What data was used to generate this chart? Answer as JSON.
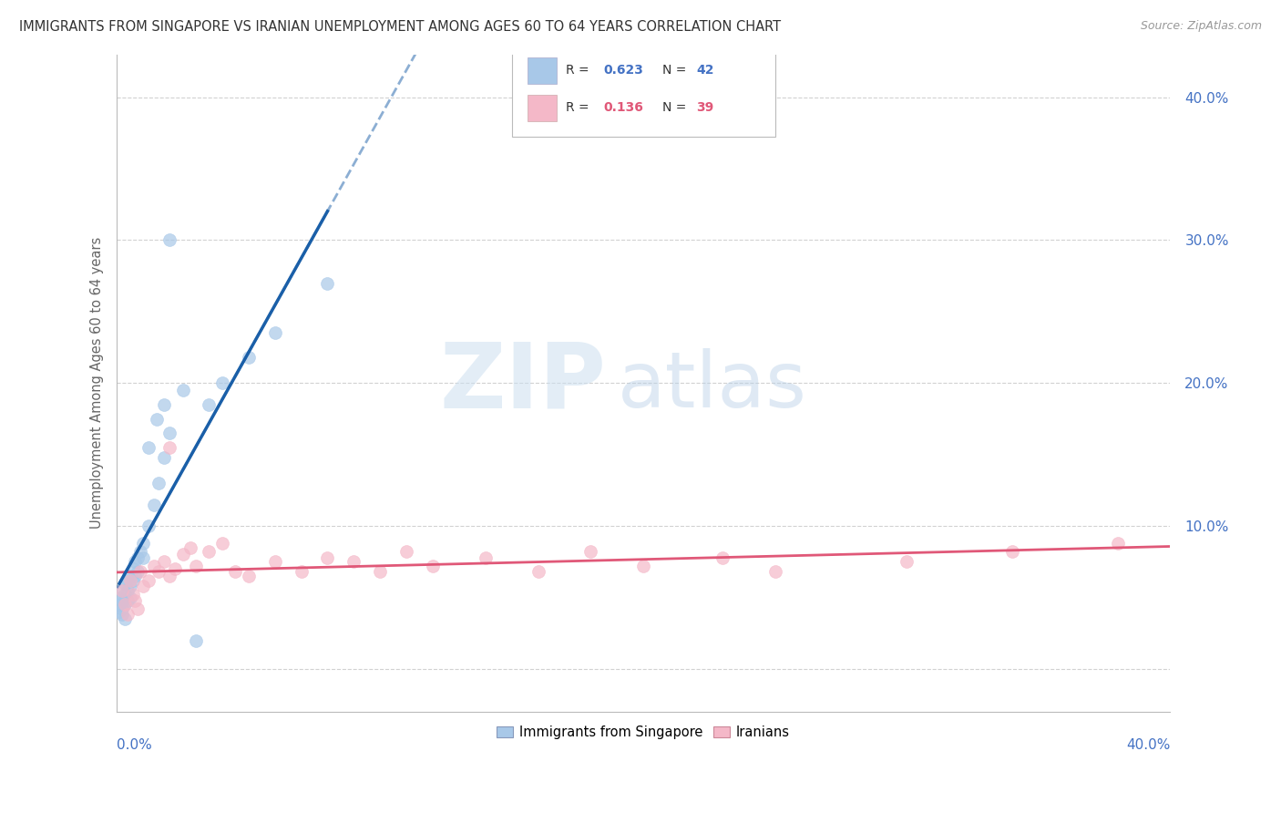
{
  "title": "IMMIGRANTS FROM SINGAPORE VS IRANIAN UNEMPLOYMENT AMONG AGES 60 TO 64 YEARS CORRELATION CHART",
  "source": "Source: ZipAtlas.com",
  "ylabel": "Unemployment Among Ages 60 to 64 years",
  "xlim": [
    0.0,
    0.4
  ],
  "ylim": [
    -0.03,
    0.43
  ],
  "yticks": [
    0.0,
    0.1,
    0.2,
    0.3,
    0.4
  ],
  "ytick_labels": [
    "",
    "10.0%",
    "20.0%",
    "30.0%",
    "40.0%"
  ],
  "singapore_color": "#a8c8e8",
  "iranian_color": "#f4b8c8",
  "singapore_line_color": "#1a5fa8",
  "iranian_line_color": "#e05878",
  "watermark_zip": "ZIP",
  "watermark_atlas": "atlas",
  "background_color": "#ffffff",
  "grid_color": "#cccccc",
  "sg_x": [
    0.001,
    0.001,
    0.001,
    0.002,
    0.002,
    0.002,
    0.002,
    0.003,
    0.003,
    0.003,
    0.003,
    0.004,
    0.004,
    0.004,
    0.005,
    0.005,
    0.005,
    0.006,
    0.006,
    0.007,
    0.007,
    0.008,
    0.008,
    0.009,
    0.01,
    0.01,
    0.012,
    0.014,
    0.016,
    0.018,
    0.02,
    0.025,
    0.03,
    0.035,
    0.04,
    0.05,
    0.06,
    0.08,
    0.012,
    0.015,
    0.02,
    0.018
  ],
  "sg_y": [
    0.05,
    0.045,
    0.04,
    0.055,
    0.048,
    0.042,
    0.038,
    0.06,
    0.052,
    0.045,
    0.035,
    0.062,
    0.055,
    0.048,
    0.065,
    0.058,
    0.05,
    0.07,
    0.062,
    0.075,
    0.065,
    0.078,
    0.068,
    0.082,
    0.088,
    0.078,
    0.1,
    0.115,
    0.13,
    0.148,
    0.165,
    0.195,
    0.02,
    0.185,
    0.2,
    0.218,
    0.235,
    0.27,
    0.155,
    0.175,
    0.3,
    0.185
  ],
  "ir_x": [
    0.002,
    0.003,
    0.004,
    0.005,
    0.006,
    0.007,
    0.008,
    0.009,
    0.01,
    0.012,
    0.014,
    0.016,
    0.018,
    0.02,
    0.022,
    0.025,
    0.028,
    0.03,
    0.035,
    0.04,
    0.045,
    0.05,
    0.06,
    0.07,
    0.08,
    0.09,
    0.1,
    0.11,
    0.12,
    0.14,
    0.16,
    0.18,
    0.2,
    0.23,
    0.25,
    0.3,
    0.34,
    0.38,
    0.02
  ],
  "ir_y": [
    0.055,
    0.045,
    0.038,
    0.062,
    0.052,
    0.048,
    0.042,
    0.068,
    0.058,
    0.062,
    0.072,
    0.068,
    0.075,
    0.065,
    0.07,
    0.08,
    0.085,
    0.072,
    0.082,
    0.088,
    0.068,
    0.065,
    0.075,
    0.068,
    0.078,
    0.075,
    0.068,
    0.082,
    0.072,
    0.078,
    0.068,
    0.082,
    0.072,
    0.078,
    0.068,
    0.075,
    0.082,
    0.088,
    0.155
  ]
}
